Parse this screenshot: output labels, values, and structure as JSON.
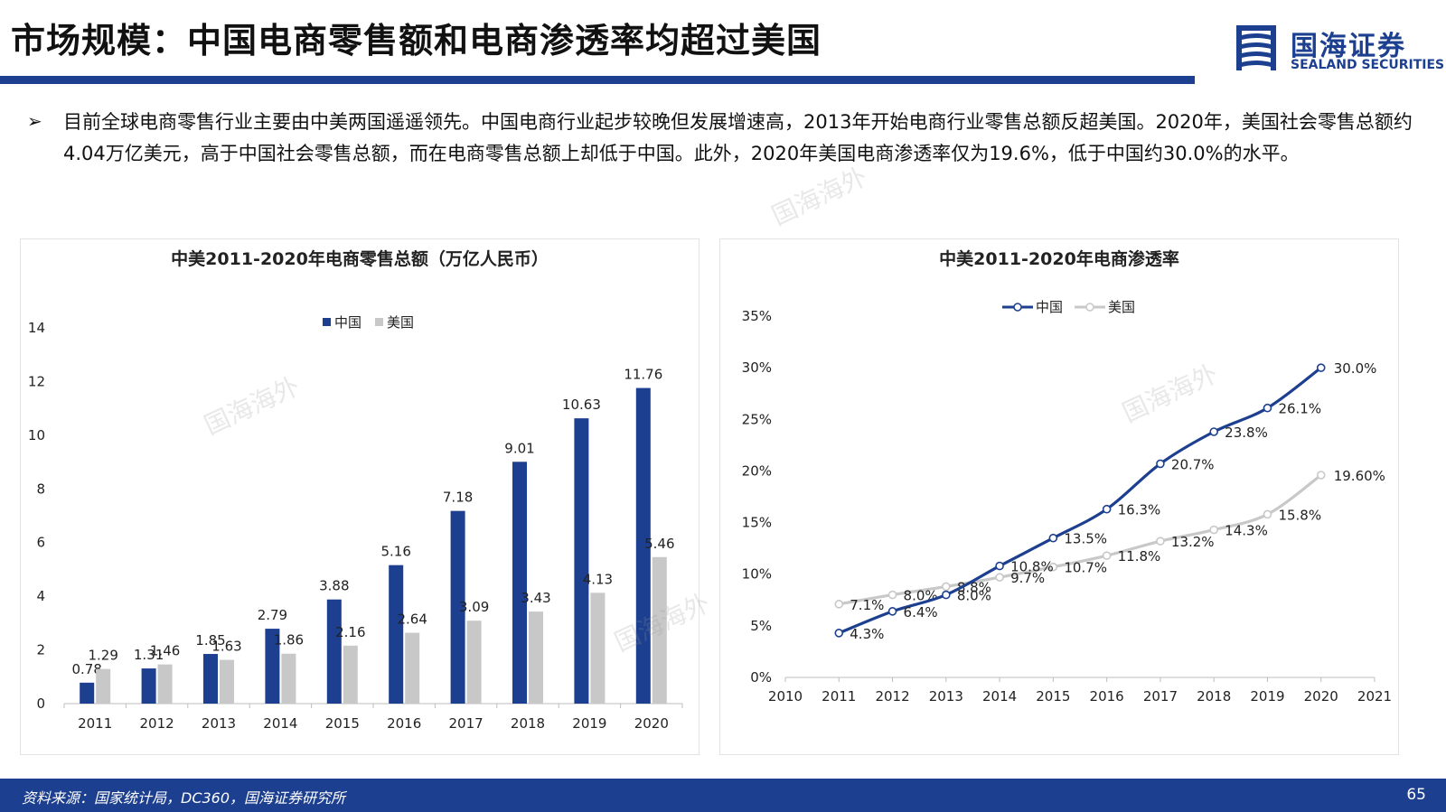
{
  "header": {
    "title": "市场规模：中国电商零售额和电商渗透率均超过美国",
    "logo_cn": "国海证券",
    "logo_en": "SEALAND SECURITIES"
  },
  "body": {
    "bullet": "➢",
    "text": "目前全球电商零售行业主要由中美两国遥遥领先。中国电商行业起步较晚但发展增速高，2013年开始电商行业零售总额反超美国。2020年，美国社会零售总额约4.04万亿美元，高于中国社会零售总额，而在电商零售总额上却低于中国。此外，2020年美国电商渗透率仅为19.6%，低于中国约30.0%的水平。"
  },
  "watermark": "国海海外",
  "footer": {
    "source": "资料来源：国家统计局，DC360，国海证券研究所",
    "page": "65"
  },
  "colors": {
    "navy": "#1d3f8f",
    "gray": "#c8c8c8",
    "line_gray": "#c8c8c8"
  },
  "chart_data": [
    {
      "type": "bar",
      "title": "中美2011-2020年电商零售总额（万亿人民币）",
      "categories": [
        "2011",
        "2012",
        "2013",
        "2014",
        "2015",
        "2016",
        "2017",
        "2018",
        "2019",
        "2020"
      ],
      "series": [
        {
          "name": "中国",
          "values": [
            0.78,
            1.31,
            1.85,
            2.79,
            3.88,
            5.16,
            7.18,
            9.01,
            10.63,
            11.76
          ],
          "labels": [
            "0.78",
            "1.31",
            "1.85",
            "2.79",
            "3.88",
            "5.16",
            "7.18",
            "9.01",
            "10.63",
            "11.76"
          ]
        },
        {
          "name": "美国",
          "values": [
            1.29,
            1.46,
            1.63,
            1.86,
            2.16,
            2.64,
            3.09,
            3.43,
            4.13,
            5.46
          ],
          "labels": [
            "1.29",
            "1.46",
            "1.63",
            "1.86",
            "2.16",
            "2.64",
            "3.09",
            "3.43",
            "4.13",
            "5.46"
          ]
        }
      ],
      "ylim": [
        0,
        14
      ],
      "yticks": [
        "0",
        "2",
        "4",
        "6",
        "8",
        "10",
        "12",
        "14"
      ],
      "legend_position": "top-center",
      "grid": false
    },
    {
      "type": "line",
      "title": "中美2011-2020年电商渗透率",
      "x": [
        2011,
        2012,
        2013,
        2014,
        2015,
        2016,
        2017,
        2018,
        2019,
        2020
      ],
      "xticks": [
        "2010",
        "2011",
        "2012",
        "2013",
        "2014",
        "2015",
        "2016",
        "2017",
        "2018",
        "2019",
        "2020",
        "2021"
      ],
      "xlim": [
        2010,
        2021
      ],
      "series": [
        {
          "name": "中国",
          "values": [
            4.3,
            6.4,
            8.0,
            10.8,
            13.5,
            16.3,
            20.7,
            23.8,
            26.1,
            30.0
          ],
          "labels": [
            "4.3%",
            "6.4%",
            "8.0%",
            "10.8%",
            "13.5%",
            "16.3%",
            "20.7%",
            "23.8%",
            "26.1%",
            "30.0%"
          ]
        },
        {
          "name": "美国",
          "values": [
            7.1,
            8.0,
            8.8,
            9.7,
            10.7,
            11.8,
            13.2,
            14.3,
            15.8,
            19.6
          ],
          "labels": [
            "7.1%",
            "8.0%",
            "8.8%",
            "9.7%",
            "10.7%",
            "11.8%",
            "13.2%",
            "14.3%",
            "15.8%",
            "19.60%"
          ]
        }
      ],
      "ylim": [
        0,
        35
      ],
      "yticks": [
        "0%",
        "5%",
        "10%",
        "15%",
        "20%",
        "25%",
        "30%",
        "35%"
      ],
      "legend_position": "top-center",
      "grid": false
    }
  ]
}
